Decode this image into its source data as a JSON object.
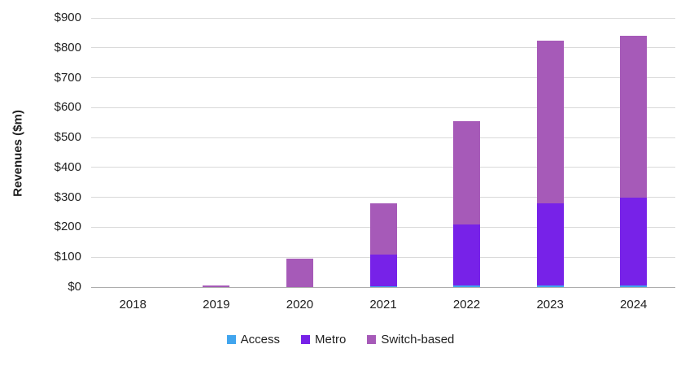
{
  "chart_data": {
    "type": "bar",
    "stacked": true,
    "title": "",
    "ylabel": "Revenues ($m)",
    "xlabel": "",
    "categories": [
      "2018",
      "2019",
      "2020",
      "2021",
      "2022",
      "2023",
      "2024"
    ],
    "series": [
      {
        "name": "Access",
        "color": "#41a5ee",
        "values": [
          0,
          0,
          0,
          2,
          5,
          5,
          5
        ]
      },
      {
        "name": "Metro",
        "color": "#7722e8",
        "values": [
          0,
          0,
          0,
          108,
          205,
          275,
          295
        ]
      },
      {
        "name": "Switch-based",
        "color": "#a65ab8",
        "values": [
          0,
          5,
          95,
          170,
          345,
          545,
          540
        ]
      }
    ],
    "totals": [
      0,
      5,
      95,
      280,
      555,
      825,
      840
    ],
    "ylim": [
      0,
      900
    ],
    "y_tick_step": 100,
    "y_tick_labels": [
      "$0",
      "$100",
      "$200",
      "$300",
      "$400",
      "$500",
      "$600",
      "$700",
      "$800",
      "$900"
    ],
    "grid": true,
    "gridline_color": "#d9d9d9",
    "axis_line_color": "#adadad",
    "text_color": "#1f1f1f",
    "legend_position": "bottom"
  }
}
